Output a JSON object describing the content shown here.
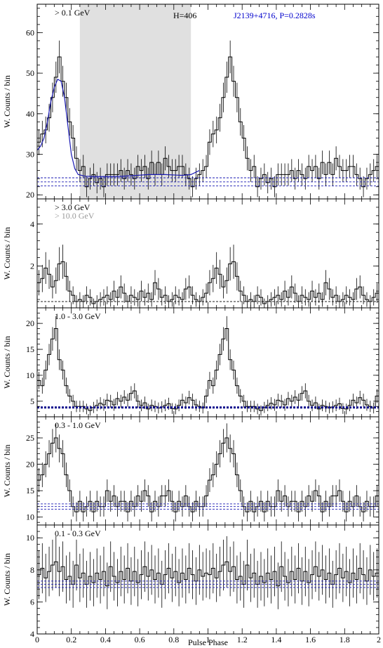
{
  "figure": {
    "xlabel": "Pulse Phase",
    "x_ticks": [
      "0",
      "0.2",
      "0.4",
      "0.6",
      "0.8",
      "1",
      "1.2",
      "1.4",
      "1.6",
      "1.8",
      "2"
    ],
    "colors": {
      "axes": "#000000",
      "histogram": "#000000",
      "model": "#1a1ab4",
      "bg_lines": "#1a1ab4",
      "bg_lines_bold": "#0a0a8c",
      "shade": "#e0e0e0",
      "label_blue": "#0000cc",
      "label_gray": "#999999"
    }
  },
  "chart_data": [
    {
      "type": "histogram",
      "label": "> 0.1 GeV",
      "annotation_h": "H=406",
      "annotation_src": "J2139+4716, P=0.2828s",
      "ylabel": "W. Counts / bin",
      "ylim": [
        19,
        67
      ],
      "yticks": [
        "20",
        "30",
        "40",
        "50",
        "60"
      ],
      "xlim": [
        0,
        2
      ],
      "off_pulse_shade": [
        0.25,
        0.9
      ],
      "bg_lines": [
        22.2,
        23.2,
        24.2
      ],
      "bin_width": 0.02,
      "values": [
        33,
        35,
        36,
        39,
        44,
        49,
        54,
        48,
        44,
        38,
        34,
        29,
        26,
        27,
        22,
        24,
        25,
        23,
        24,
        22,
        25,
        25,
        25,
        25,
        26,
        24,
        26,
        25,
        24,
        27,
        26,
        27,
        24,
        28,
        25,
        28,
        25,
        29,
        27,
        26,
        26,
        27,
        27,
        25,
        24,
        22,
        24,
        25,
        26,
        27
      ],
      "model": [
        [
          0.0,
          31
        ],
        [
          0.02,
          32
        ],
        [
          0.04,
          34
        ],
        [
          0.06,
          38
        ],
        [
          0.08,
          43
        ],
        [
          0.1,
          46.5
        ],
        [
          0.12,
          48.5
        ],
        [
          0.14,
          48
        ],
        [
          0.16,
          44
        ],
        [
          0.18,
          37
        ],
        [
          0.2,
          30
        ],
        [
          0.22,
          26.5
        ],
        [
          0.24,
          25
        ],
        [
          0.28,
          24.6
        ],
        [
          0.35,
          24.5
        ],
        [
          0.45,
          24.5
        ],
        [
          0.55,
          24.7
        ],
        [
          0.65,
          25
        ],
        [
          0.75,
          25
        ],
        [
          0.85,
          24.8
        ],
        [
          0.9,
          25
        ],
        [
          0.95,
          26
        ]
      ]
    },
    {
      "type": "histogram",
      "label": "> 3.0 GeV",
      "label2": "> 10.0 GeV",
      "ylabel": "W. Counts / bin",
      "ylim": [
        0,
        5.2
      ],
      "yticks": [
        "2",
        "4"
      ],
      "xlim": [
        0,
        2
      ],
      "bg_lines": [
        0.3
      ],
      "bin_width": 0.02,
      "values": [
        1.2,
        1.4,
        1.9,
        1.6,
        1.0,
        1.3,
        2.1,
        2.2,
        1.5,
        0.8,
        0.6,
        0.3,
        0.4,
        0.3,
        0.6,
        0.5,
        0.2,
        0.3,
        0.4,
        0.5,
        0.6,
        0.4,
        0.8,
        0.5,
        1.0,
        0.7,
        0.3,
        0.6,
        0.5,
        0.4,
        0.8,
        0.5,
        0.7,
        0.4,
        1.2,
        0.9,
        0.5,
        0.6,
        0.3,
        0.4,
        0.6,
        0.5,
        0.4,
        0.9,
        1.0,
        0.6,
        0.4,
        0.3,
        0.5,
        0.7
      ]
    },
    {
      "type": "histogram",
      "label": "1.0 - 3.0 GeV",
      "ylabel": "W. Counts / bin",
      "ylim": [
        2,
        23
      ],
      "yticks": [
        "5",
        "10",
        "15",
        "20"
      ],
      "xlim": [
        0,
        2
      ],
      "bg_lines": [
        3.8
      ],
      "bold_bg": true,
      "bin_width": 0.02,
      "values": [
        9,
        8,
        11,
        14,
        17,
        19,
        13,
        11,
        8,
        6,
        5,
        4,
        4,
        4,
        3.5,
        3.2,
        3.8,
        4.2,
        4.6,
        4.3,
        5.2,
        5,
        4.3,
        5.5,
        5,
        5.8,
        5.2,
        6.5,
        7,
        5,
        4.2,
        4.7,
        3.5,
        4.2,
        4,
        3.7,
        3.9,
        4.2,
        4.5,
        3.6,
        3.5,
        4.2,
        5.2,
        4.7,
        5.7,
        5.2,
        4.3,
        4,
        3.7,
        6
      ]
    },
    {
      "type": "histogram",
      "label": "0.3 - 1.0 GeV",
      "ylabel": "W. Counts / bin",
      "ylim": [
        8.5,
        29
      ],
      "yticks": [
        "10",
        "15",
        "20",
        "25"
      ],
      "xlim": [
        0,
        2
      ],
      "bg_lines": [
        11.5,
        12.0,
        12.5
      ],
      "bin_width": 0.02,
      "values": [
        17,
        18,
        20,
        22,
        24,
        25,
        23,
        22,
        18,
        15,
        12,
        11,
        13,
        11,
        12,
        13,
        11,
        13,
        12,
        12,
        15,
        13,
        14,
        12,
        13,
        13,
        11,
        13,
        12,
        14,
        13,
        15,
        14,
        11,
        13,
        12,
        14,
        14,
        15,
        13,
        11,
        13,
        12,
        14,
        12,
        11,
        13,
        12,
        12,
        14
      ]
    },
    {
      "type": "histogram",
      "label": "0.1 - 0.3 GeV",
      "ylabel": "W. Counts / bin",
      "ylim": [
        4,
        10.8
      ],
      "yticks": [
        "4",
        "6",
        "8",
        "10"
      ],
      "xlim": [
        0,
        2
      ],
      "bg_lines": [
        6.9,
        7.1,
        7.3
      ],
      "bin_width": 0.02,
      "values": [
        7.7,
        8.1,
        7.5,
        7.9,
        8.3,
        8.5,
        7.9,
        8.2,
        7.4,
        7.6,
        7.1,
        8.3,
        7.5,
        7.8,
        7.1,
        7.6,
        7.2,
        7.8,
        7.4,
        7.9,
        7.0,
        8.2,
        7.6,
        7.2,
        7.9,
        7.4,
        8.1,
        7.3,
        7.9,
        7.2,
        7.7,
        8.2,
        7.6,
        8.0,
        7.4,
        7.8,
        7.1,
        7.7,
        8.1,
        7.5,
        7.9,
        7.2,
        7.8,
        7.4,
        8.1,
        7.7,
        7.3,
        8.0,
        7.6,
        7.8
      ]
    }
  ]
}
